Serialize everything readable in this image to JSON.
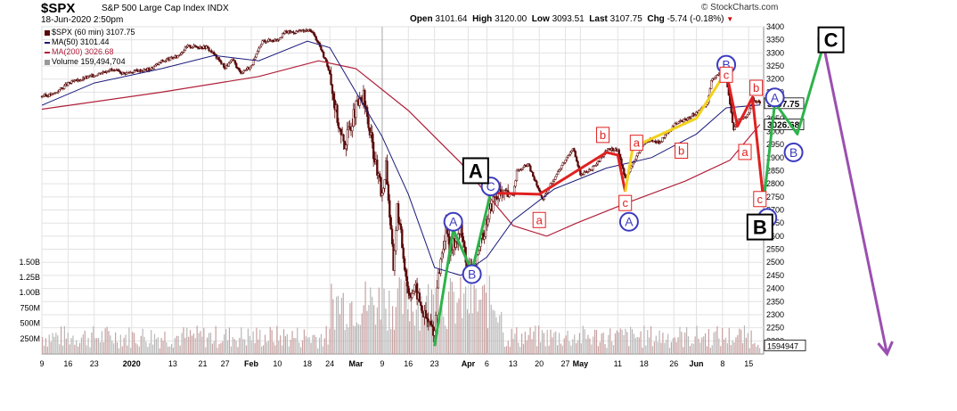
{
  "header": {
    "symbol": "$SPX",
    "name": "S&P 500 Large Cap Index",
    "exchange": "INDX",
    "datetime": "18-Jun-2020 2:50pm",
    "brand": "© StockCharts.com",
    "open_label": "Open",
    "open": "3101.64",
    "high_label": "High",
    "high": "3120.00",
    "low_label": "Low",
    "low": "3093.51",
    "last_label": "Last",
    "last": "3107.75",
    "chg_label": "Chg",
    "chg": "-5.74 (-0.18%)",
    "chg_marker": "▼"
  },
  "legend": {
    "price": "$SPX (60 min) 3107.75",
    "ma50": "MA(50) 3101.44",
    "ma200": "MA(200) 3026.68",
    "volume": "Volume 159,494,704"
  },
  "colors": {
    "ma50": "#1a1a7a",
    "ma200": "#b0203a",
    "candle": "#5a0a0a",
    "volume_up": "#c9a0a0",
    "volume_down": "#b8b8b8",
    "grid": "#e2e2e2",
    "green": "#2db34a",
    "red": "#e02020",
    "yellow": "#f2d21b",
    "purple": "#9b4fb0",
    "blue": "#3b3bbf",
    "box_red": "#e02020"
  },
  "chart_data": {
    "type": "line",
    "title": "$SPX S&P 500 Large Cap Index INDX",
    "interval": "60 min",
    "ylim": [
      2150,
      3400
    ],
    "y_ticks": [
      2200,
      2250,
      2300,
      2350,
      2400,
      2450,
      2500,
      2550,
      2600,
      2650,
      2700,
      2750,
      2800,
      2850,
      2900,
      2950,
      3000,
      3050,
      3100,
      3150,
      3200,
      3250,
      3300,
      3350,
      3400
    ],
    "volume_ticks": [
      "250M",
      "500M",
      "750M",
      "1.00B",
      "1.25B",
      "1.50B"
    ],
    "volume_ylim": [
      0,
      1700000000
    ],
    "last_volume_label": "1594947",
    "grid": true,
    "x_tick_labels": [
      "9",
      "16",
      "23",
      "2020",
      "13",
      "21",
      "27",
      "Feb",
      "10",
      "18",
      "24",
      "Mar",
      "9",
      "16",
      "23",
      "Apr",
      "6",
      "13",
      "20",
      "27",
      "May",
      "11",
      "18",
      "26",
      "Jun",
      "8",
      "15"
    ],
    "price_series": [
      {
        "d": "2019-12-09",
        "c": 3135
      },
      {
        "d": "2019-12-12",
        "c": 3142
      },
      {
        "d": "2019-12-16",
        "c": 3183
      },
      {
        "d": "2019-12-19",
        "c": 3197
      },
      {
        "d": "2019-12-23",
        "c": 3215
      },
      {
        "d": "2019-12-27",
        "c": 3237
      },
      {
        "d": "2019-12-31",
        "c": 3222
      },
      {
        "d": "2020-01-03",
        "c": 3231
      },
      {
        "d": "2020-01-07",
        "c": 3238
      },
      {
        "d": "2020-01-10",
        "c": 3268
      },
      {
        "d": "2020-01-14",
        "c": 3285
      },
      {
        "d": "2020-01-17",
        "c": 3326
      },
      {
        "d": "2020-01-22",
        "c": 3322
      },
      {
        "d": "2020-01-24",
        "c": 3295
      },
      {
        "d": "2020-01-27",
        "c": 3244
      },
      {
        "d": "2020-01-29",
        "c": 3274
      },
      {
        "d": "2020-01-31",
        "c": 3225
      },
      {
        "d": "2020-02-03",
        "c": 3249
      },
      {
        "d": "2020-02-06",
        "c": 3345
      },
      {
        "d": "2020-02-10",
        "c": 3352
      },
      {
        "d": "2020-02-12",
        "c": 3379
      },
      {
        "d": "2020-02-14",
        "c": 3380
      },
      {
        "d": "2020-02-19",
        "c": 3386
      },
      {
        "d": "2020-02-21",
        "c": 3337
      },
      {
        "d": "2020-02-24",
        "c": 3225
      },
      {
        "d": "2020-02-25",
        "c": 3128
      },
      {
        "d": "2020-02-27",
        "c": 2979
      },
      {
        "d": "2020-02-28",
        "c": 2954
      },
      {
        "d": "2020-03-02",
        "c": 3090
      },
      {
        "d": "2020-03-04",
        "c": 3130
      },
      {
        "d": "2020-03-06",
        "c": 2972
      },
      {
        "d": "2020-03-09",
        "c": 2746
      },
      {
        "d": "2020-03-10",
        "c": 2882
      },
      {
        "d": "2020-03-12",
        "c": 2480
      },
      {
        "d": "2020-03-13",
        "c": 2711
      },
      {
        "d": "2020-03-16",
        "c": 2386
      },
      {
        "d": "2020-03-18",
        "c": 2398
      },
      {
        "d": "2020-03-20",
        "c": 2304
      },
      {
        "d": "2020-03-23",
        "c": 2237
      },
      {
        "d": "2020-03-24",
        "c": 2447
      },
      {
        "d": "2020-03-26",
        "c": 2630
      },
      {
        "d": "2020-03-27",
        "c": 2541
      },
      {
        "d": "2020-03-30",
        "c": 2627
      },
      {
        "d": "2020-04-01",
        "c": 2470
      },
      {
        "d": "2020-04-03",
        "c": 2489
      },
      {
        "d": "2020-04-06",
        "c": 2664
      },
      {
        "d": "2020-04-08",
        "c": 2750
      },
      {
        "d": "2020-04-13",
        "c": 2761
      },
      {
        "d": "2020-04-14",
        "c": 2846
      },
      {
        "d": "2020-04-17",
        "c": 2875
      },
      {
        "d": "2020-04-21",
        "c": 2737
      },
      {
        "d": "2020-04-23",
        "c": 2798
      },
      {
        "d": "2020-04-29",
        "c": 2940
      },
      {
        "d": "2020-05-01",
        "c": 2831
      },
      {
        "d": "2020-05-05",
        "c": 2868
      },
      {
        "d": "2020-05-08",
        "c": 2930
      },
      {
        "d": "2020-05-11",
        "c": 2930
      },
      {
        "d": "2020-05-13",
        "c": 2820
      },
      {
        "d": "2020-05-14",
        "c": 2852
      },
      {
        "d": "2020-05-18",
        "c": 2954
      },
      {
        "d": "2020-05-20",
        "c": 2971
      },
      {
        "d": "2020-05-22",
        "c": 2955
      },
      {
        "d": "2020-05-27",
        "c": 3036
      },
      {
        "d": "2020-05-29",
        "c": 3044
      },
      {
        "d": "2020-06-02",
        "c": 3081
      },
      {
        "d": "2020-06-04",
        "c": 3112
      },
      {
        "d": "2020-06-05",
        "c": 3193
      },
      {
        "d": "2020-06-08",
        "c": 3232
      },
      {
        "d": "2020-06-09",
        "c": 3207
      },
      {
        "d": "2020-06-11",
        "c": 3002
      },
      {
        "d": "2020-06-12",
        "c": 3041
      },
      {
        "d": "2020-06-15",
        "c": 3066
      },
      {
        "d": "2020-06-16",
        "c": 3124
      },
      {
        "d": "2020-06-17",
        "c": 3113
      },
      {
        "d": "2020-06-18",
        "c": 3107.75
      }
    ],
    "ma50_series": [
      {
        "d": "2019-12-09",
        "c": 3100
      },
      {
        "d": "2019-12-23",
        "c": 3185
      },
      {
        "d": "2020-01-10",
        "c": 3240
      },
      {
        "d": "2020-01-24",
        "c": 3290
      },
      {
        "d": "2020-02-05",
        "c": 3270
      },
      {
        "d": "2020-02-18",
        "c": 3345
      },
      {
        "d": "2020-02-24",
        "c": 3320
      },
      {
        "d": "2020-03-02",
        "c": 3150
      },
      {
        "d": "2020-03-09",
        "c": 2980
      },
      {
        "d": "2020-03-16",
        "c": 2760
      },
      {
        "d": "2020-03-23",
        "c": 2480
      },
      {
        "d": "2020-03-30",
        "c": 2450
      },
      {
        "d": "2020-04-06",
        "c": 2520
      },
      {
        "d": "2020-04-13",
        "c": 2660
      },
      {
        "d": "2020-04-24",
        "c": 2780
      },
      {
        "d": "2020-05-08",
        "c": 2860
      },
      {
        "d": "2020-05-20",
        "c": 2900
      },
      {
        "d": "2020-06-01",
        "c": 2990
      },
      {
        "d": "2020-06-09",
        "c": 3090
      },
      {
        "d": "2020-06-18",
        "c": 3101.44
      }
    ],
    "ma200_series": [
      {
        "d": "2019-12-09",
        "c": 3085
      },
      {
        "d": "2020-01-10",
        "c": 3150
      },
      {
        "d": "2020-02-05",
        "c": 3210
      },
      {
        "d": "2020-02-21",
        "c": 3270
      },
      {
        "d": "2020-03-02",
        "c": 3240
      },
      {
        "d": "2020-03-16",
        "c": 3080
      },
      {
        "d": "2020-03-30",
        "c": 2880
      },
      {
        "d": "2020-04-13",
        "c": 2640
      },
      {
        "d": "2020-04-22",
        "c": 2600
      },
      {
        "d": "2020-04-30",
        "c": 2650
      },
      {
        "d": "2020-05-14",
        "c": 2730
      },
      {
        "d": "2020-05-29",
        "c": 2810
      },
      {
        "d": "2020-06-10",
        "c": 2890
      },
      {
        "d": "2020-06-18",
        "c": 3026.68
      }
    ],
    "annotations": {
      "boxes": [
        {
          "label": "A",
          "d": "2020-04-03",
          "y": 2850
        },
        {
          "label": "B",
          "d": "2020-06-18",
          "y": 2635
        },
        {
          "label": "C",
          "d": "2020-07-07",
          "y": 3350
        }
      ],
      "circles": [
        {
          "label": "A",
          "d": "2020-03-28",
          "y": 2655,
          "color": "#3b3bbf"
        },
        {
          "label": "B",
          "d": "2020-04-02",
          "y": 2455,
          "color": "#3b3bbf"
        },
        {
          "label": "C",
          "d": "2020-04-07",
          "y": 2790,
          "color": "#3b3bbf"
        },
        {
          "label": "A",
          "d": "2020-05-14",
          "y": 2655,
          "color": "#3b3bbf"
        },
        {
          "label": "B",
          "d": "2020-06-09",
          "y": 3255,
          "color": "#3b3bbf"
        },
        {
          "label": "C",
          "d": "2020-06-20",
          "y": 2670,
          "color": "#3b3bbf"
        },
        {
          "label": "A",
          "d": "2020-06-22",
          "y": 3130,
          "color": "#3b3bbf"
        },
        {
          "label": "B",
          "d": "2020-06-27",
          "y": 2920,
          "color": "#3b3bbf"
        },
        {
          "label": "C",
          "d": "2020-07-06",
          "y": 3355,
          "color": "#3b3bbf"
        }
      ],
      "small_labels": [
        {
          "label": "a",
          "d": "2020-04-20",
          "y": 2660
        },
        {
          "label": "b",
          "d": "2020-05-07",
          "y": 2985
        },
        {
          "label": "c",
          "d": "2020-05-13",
          "y": 2725
        },
        {
          "label": "a",
          "d": "2020-05-16",
          "y": 2955
        },
        {
          "label": "b",
          "d": "2020-05-28",
          "y": 2925
        },
        {
          "label": "c",
          "d": "2020-06-09",
          "y": 3215
        },
        {
          "label": "a",
          "d": "2020-06-14",
          "y": 2920
        },
        {
          "label": "b",
          "d": "2020-06-17",
          "y": 3165
        },
        {
          "label": "c",
          "d": "2020-06-18",
          "y": 2740
        }
      ],
      "wave_lines": [
        {
          "color": "#2db34a",
          "points": [
            [
              "2020-03-23",
              2180
            ],
            [
              "2020-03-28",
              2625
            ],
            [
              "2020-04-02",
              2465
            ],
            [
              "2020-04-07",
              2765
            ]
          ]
        },
        {
          "color": "#e02020",
          "points": [
            [
              "2020-04-07",
              2765
            ],
            [
              "2020-04-20",
              2760
            ],
            [
              "2020-05-08",
              2920
            ],
            [
              "2020-05-11",
              2910
            ],
            [
              "2020-05-13",
              2770
            ]
          ]
        },
        {
          "color": "#f2d21b",
          "points": [
            [
              "2020-05-13",
              2770
            ],
            [
              "2020-05-15",
              2940
            ],
            [
              "2020-06-01",
              3050
            ],
            [
              "2020-06-09",
              3230
            ]
          ]
        },
        {
          "color": "#e02020",
          "points": [
            [
              "2020-06-09",
              3230
            ],
            [
              "2020-06-12",
              3020
            ],
            [
              "2020-06-16",
              3130
            ],
            [
              "2020-06-19",
              2730
            ]
          ]
        },
        {
          "color": "#2db34a",
          "points": [
            [
              "2020-06-19",
              2730
            ],
            [
              "2020-06-22",
              3110
            ],
            [
              "2020-06-28",
              2990
            ],
            [
              "2020-07-05",
              3330
            ]
          ]
        },
        {
          "color": "#9b4fb0",
          "points": [
            [
              "2020-07-05",
              3330
            ],
            [
              "2020-07-22",
              2150
            ]
          ],
          "arrow": true
        }
      ]
    }
  }
}
